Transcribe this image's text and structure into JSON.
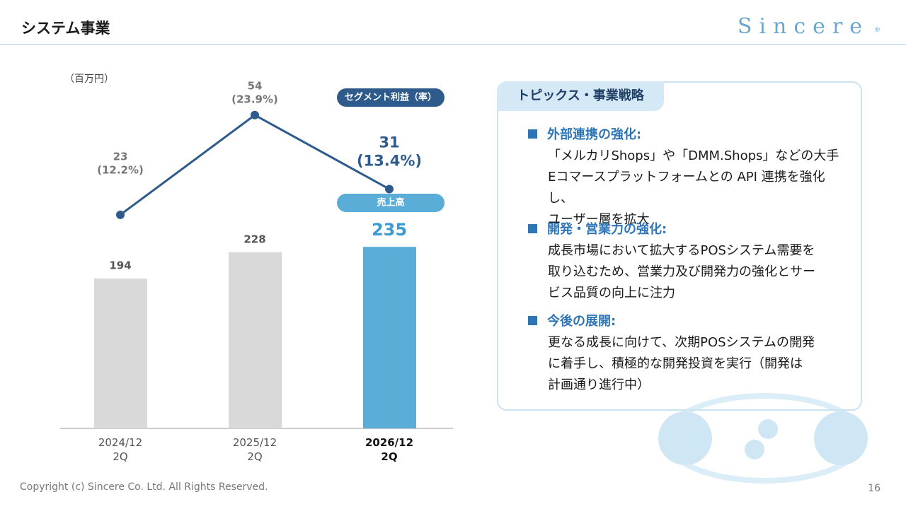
{
  "header": {
    "title": "システム事業",
    "logo": "Sincere",
    "logo_mark": "®"
  },
  "chart_data": {
    "type": "bar",
    "unit_label": "（百万円）",
    "categories": [
      "2024/12\n2Q",
      "2025/12\n2Q",
      "2026/12\n2Q"
    ],
    "series": [
      {
        "name": "売上高",
        "type": "bar",
        "colors": [
          "#d9d9d9",
          "#d9d9d9",
          "#5aadd6"
        ],
        "values": [
          194,
          228,
          235
        ]
      },
      {
        "name": "セグメント利益（率）",
        "type": "line",
        "axis": "y2",
        "color": "#2e5a8c",
        "values": [
          23,
          54,
          31
        ],
        "rate_labels": [
          "(12.2%)",
          "(23.9%)",
          "(13.4%)"
        ]
      }
    ],
    "ylim": [
      0,
      463
    ],
    "y2lim": [
      -43.4,
      67.8
    ]
  },
  "topics": {
    "title": "トピックス・事業戦略",
    "items": [
      {
        "heading": "外部連携の強化:",
        "lines": [
          "「メルカリShops」や「DMM.Shops」などの大手",
          "Eコマースプラットフォームとの API 連携を強化し、",
          "ユーザー層を拡大"
        ]
      },
      {
        "heading": "開発・営業力の強化:",
        "lines": [
          "成長市場において拡大するPOSシステム需要を",
          "取り込むため、営業力及び開発力の強化とサー",
          "ビス品質の向上に注力"
        ]
      },
      {
        "heading": "今後の展開:",
        "lines": [
          "更なる成長に向けて、次期POSシステムの開発",
          "に着手し、積極的な開発投資を実行（開発は",
          "計画通り進行中）"
        ]
      }
    ]
  },
  "footer": {
    "copyright": "Copyright (c) Sincere Co. Ltd. All Rights Reserved.",
    "page": 16
  }
}
